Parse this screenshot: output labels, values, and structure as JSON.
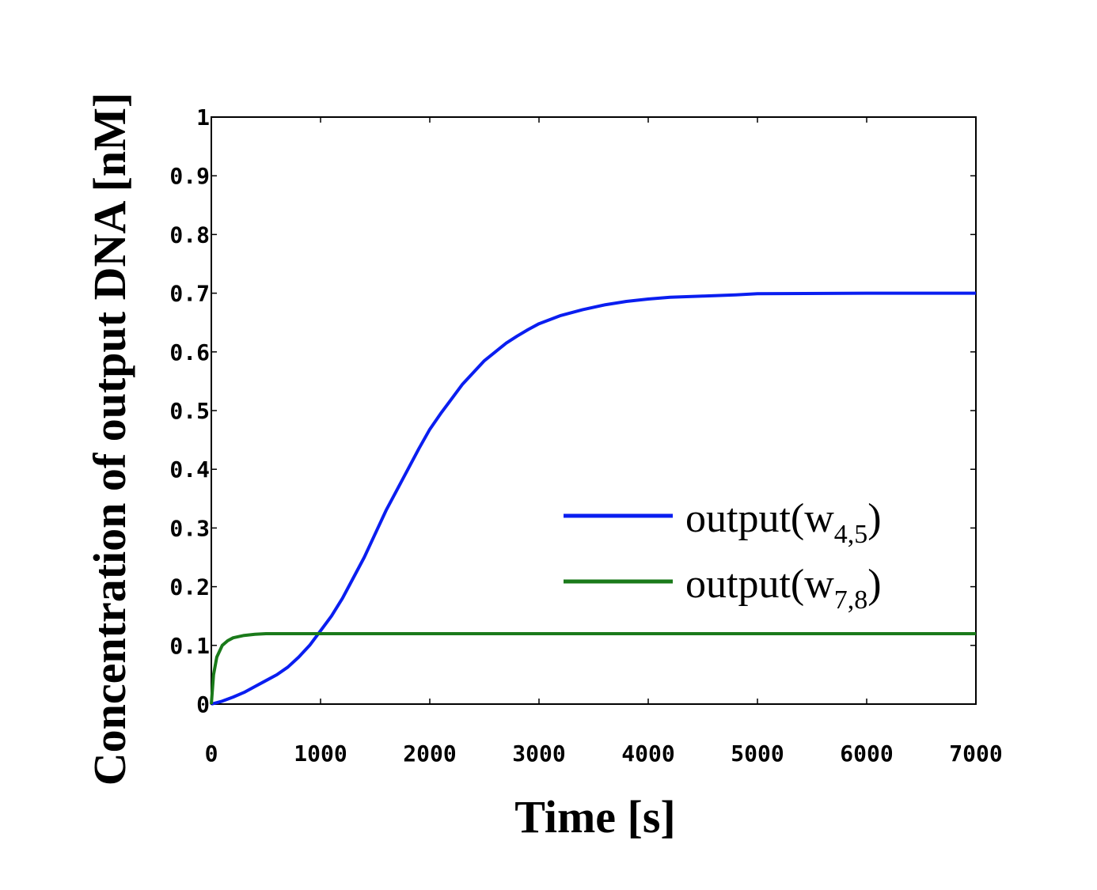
{
  "chart_data": {
    "type": "line",
    "xlabel": "Time [s]",
    "ylabel": "Concentration of output DNA [nM]",
    "xlim": [
      0,
      7000
    ],
    "ylim": [
      0,
      1
    ],
    "x_ticks": [
      "0",
      "1000",
      "2000",
      "3000",
      "4000",
      "5000",
      "6000",
      "7000"
    ],
    "y_ticks": [
      "0",
      "0.1",
      "0.2",
      "0.3",
      "0.4",
      "0.5",
      "0.6",
      "0.7",
      "0.8",
      "0.9",
      "1"
    ],
    "grid": false,
    "legend_position": "right",
    "series": [
      {
        "name": "output(w4,5)",
        "legend_main": "output(w",
        "legend_sub": "4,5",
        "legend_close": ")",
        "color": "#0a1ef0",
        "points": [
          [
            0,
            0
          ],
          [
            100,
            0.005
          ],
          [
            200,
            0.012
          ],
          [
            300,
            0.02
          ],
          [
            400,
            0.03
          ],
          [
            500,
            0.04
          ],
          [
            600,
            0.05
          ],
          [
            700,
            0.063
          ],
          [
            800,
            0.08
          ],
          [
            900,
            0.1
          ],
          [
            1000,
            0.125
          ],
          [
            1100,
            0.15
          ],
          [
            1200,
            0.18
          ],
          [
            1300,
            0.215
          ],
          [
            1400,
            0.25
          ],
          [
            1500,
            0.29
          ],
          [
            1600,
            0.33
          ],
          [
            1700,
            0.365
          ],
          [
            1800,
            0.4
          ],
          [
            1900,
            0.435
          ],
          [
            2000,
            0.468
          ],
          [
            2100,
            0.495
          ],
          [
            2200,
            0.52
          ],
          [
            2300,
            0.545
          ],
          [
            2400,
            0.565
          ],
          [
            2500,
            0.585
          ],
          [
            2600,
            0.6
          ],
          [
            2700,
            0.615
          ],
          [
            2800,
            0.627
          ],
          [
            2900,
            0.638
          ],
          [
            3000,
            0.648
          ],
          [
            3200,
            0.662
          ],
          [
            3400,
            0.672
          ],
          [
            3600,
            0.68
          ],
          [
            3800,
            0.686
          ],
          [
            4000,
            0.69
          ],
          [
            4200,
            0.693
          ],
          [
            4500,
            0.695
          ],
          [
            4800,
            0.697
          ],
          [
            5000,
            0.699
          ],
          [
            6000,
            0.7
          ],
          [
            7000,
            0.7
          ]
        ]
      },
      {
        "name": "output(w7,8)",
        "legend_main": "output(w",
        "legend_sub": "7,8",
        "legend_close": ")",
        "color": "#1a7a1a",
        "points": [
          [
            0,
            0
          ],
          [
            20,
            0.05
          ],
          [
            50,
            0.08
          ],
          [
            100,
            0.1
          ],
          [
            150,
            0.108
          ],
          [
            200,
            0.113
          ],
          [
            300,
            0.117
          ],
          [
            400,
            0.119
          ],
          [
            500,
            0.12
          ],
          [
            700,
            0.12
          ],
          [
            1000,
            0.12
          ],
          [
            7000,
            0.12
          ]
        ]
      }
    ]
  }
}
